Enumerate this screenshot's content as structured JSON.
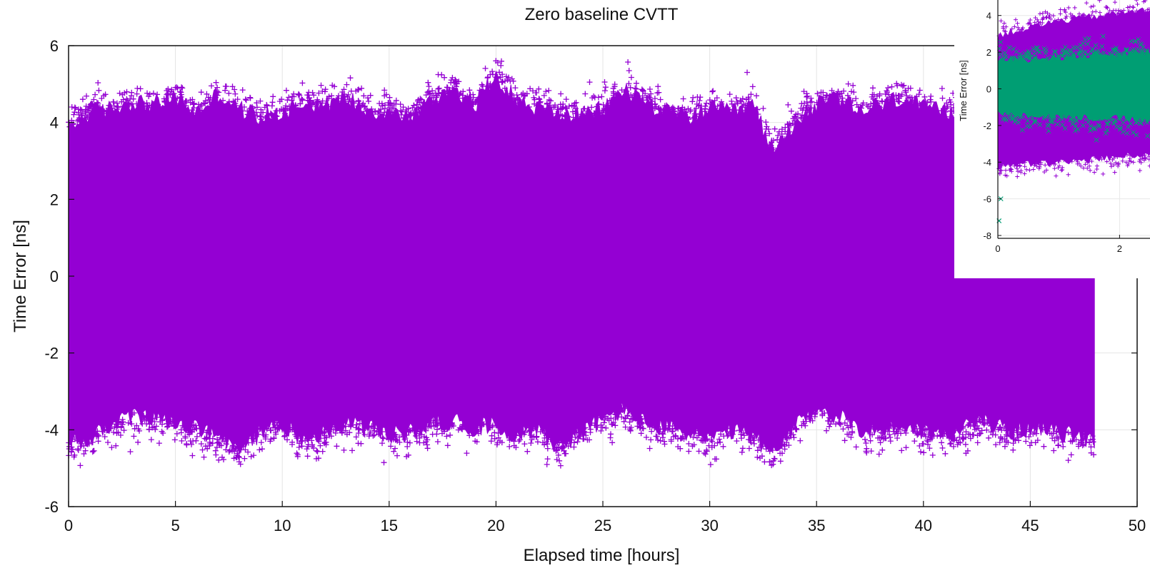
{
  "chart_data": [
    {
      "type": "scatter",
      "title": "Zero baseline CVTT",
      "xlabel": "Elapsed time [hours]",
      "ylabel": "Time Error [ns]",
      "xlim": [
        0,
        50
      ],
      "ylim": [
        -6,
        6
      ],
      "xticks": [
        "0",
        "5",
        "10",
        "15",
        "20",
        "25",
        "30",
        "35",
        "40",
        "45",
        "50"
      ],
      "yticks": [
        "6",
        "4",
        "2",
        "0",
        "-2",
        "-4",
        "-6"
      ],
      "grid": true,
      "marker": "+",
      "series": [
        {
          "color": "#9400d3",
          "x_range": [
            0,
            48
          ],
          "upper_envelope": [
            [
              0,
              4.2
            ],
            [
              1,
              4.6
            ],
            [
              2,
              4.7
            ],
            [
              3,
              4.9
            ],
            [
              4,
              4.8
            ],
            [
              5,
              5.0
            ],
            [
              6,
              4.6
            ],
            [
              7,
              5.1
            ],
            [
              8,
              4.7
            ],
            [
              9,
              4.5
            ],
            [
              10,
              4.6
            ],
            [
              11,
              4.9
            ],
            [
              12,
              4.8
            ],
            [
              13,
              5.0
            ],
            [
              14,
              4.7
            ],
            [
              15,
              4.6
            ],
            [
              16,
              4.5
            ],
            [
              17,
              4.9
            ],
            [
              18,
              5.3
            ],
            [
              19,
              4.8
            ],
            [
              20,
              5.6
            ],
            [
              21,
              4.9
            ],
            [
              22,
              4.7
            ],
            [
              23,
              4.6
            ],
            [
              24,
              4.5
            ],
            [
              25,
              4.7
            ],
            [
              26,
              5.2
            ],
            [
              27,
              4.9
            ],
            [
              28,
              4.6
            ],
            [
              29,
              4.5
            ],
            [
              30,
              4.7
            ],
            [
              31,
              4.6
            ],
            [
              32,
              4.8
            ],
            [
              33,
              3.6
            ],
            [
              34,
              4.4
            ],
            [
              35,
              4.8
            ],
            [
              36,
              5.0
            ],
            [
              37,
              4.6
            ],
            [
              38,
              4.8
            ],
            [
              39,
              5.0
            ],
            [
              40,
              4.7
            ],
            [
              41,
              4.6
            ],
            [
              42,
              4.4
            ],
            [
              43,
              4.8
            ],
            [
              44,
              4.6
            ],
            [
              45,
              4.6
            ],
            [
              46,
              4.7
            ],
            [
              47,
              4.5
            ],
            [
              48,
              4.4
            ]
          ],
          "lower_envelope": [
            [
              0,
              -4.7
            ],
            [
              1,
              -4.6
            ],
            [
              2,
              -4.2
            ],
            [
              3,
              -4.0
            ],
            [
              4,
              -4.1
            ],
            [
              5,
              -4.2
            ],
            [
              6,
              -4.3
            ],
            [
              7,
              -4.6
            ],
            [
              8,
              -4.9
            ],
            [
              9,
              -4.4
            ],
            [
              10,
              -4.2
            ],
            [
              11,
              -4.6
            ],
            [
              12,
              -4.4
            ],
            [
              13,
              -4.2
            ],
            [
              14,
              -4.3
            ],
            [
              15,
              -4.5
            ],
            [
              16,
              -4.4
            ],
            [
              17,
              -4.2
            ],
            [
              18,
              -4.1
            ],
            [
              19,
              -4.3
            ],
            [
              20,
              -4.2
            ],
            [
              21,
              -4.5
            ],
            [
              22,
              -4.3
            ],
            [
              23,
              -4.8
            ],
            [
              24,
              -4.4
            ],
            [
              25,
              -4.1
            ],
            [
              26,
              -3.8
            ],
            [
              27,
              -4.2
            ],
            [
              28,
              -4.3
            ],
            [
              29,
              -4.4
            ],
            [
              30,
              -4.6
            ],
            [
              31,
              -4.4
            ],
            [
              32,
              -4.5
            ],
            [
              33,
              -5.0
            ],
            [
              34,
              -4.3
            ],
            [
              35,
              -3.8
            ],
            [
              36,
              -4.0
            ],
            [
              37,
              -4.3
            ],
            [
              38,
              -4.4
            ],
            [
              39,
              -4.2
            ],
            [
              40,
              -4.4
            ],
            [
              41,
              -4.5
            ],
            [
              42,
              -4.3
            ],
            [
              43,
              -4.1
            ],
            [
              44,
              -4.4
            ],
            [
              45,
              -4.3
            ],
            [
              46,
              -4.4
            ],
            [
              47,
              -4.5
            ],
            [
              48,
              -4.6
            ]
          ]
        }
      ]
    },
    {
      "type": "scatter",
      "ylabel": "Time Error [ns]",
      "xlim": [
        0,
        2.5
      ],
      "ylim": [
        -8,
        5
      ],
      "xticks": [
        "0",
        "2"
      ],
      "yticks": [
        "4",
        "2",
        "0",
        "-2",
        "-4",
        "-6",
        "-8"
      ],
      "grid": true,
      "series": [
        {
          "color": "#9400d3",
          "marker": "+",
          "upper_envelope": [
            [
              0,
              3.2
            ],
            [
              1,
              4.0
            ],
            [
              2,
              4.4
            ],
            [
              2.5,
              4.6
            ]
          ],
          "lower_envelope": [
            [
              0,
              -4.5
            ],
            [
              1,
              -4.3
            ],
            [
              2,
              -4.0
            ],
            [
              2.5,
              -3.8
            ]
          ]
        },
        {
          "color": "#009e73",
          "marker": "x",
          "upper_envelope": [
            [
              0,
              1.8
            ],
            [
              1,
              2.0
            ],
            [
              2,
              2.2
            ],
            [
              2.5,
              2.3
            ]
          ],
          "lower_envelope": [
            [
              0,
              -1.6
            ],
            [
              1,
              -1.8
            ],
            [
              2,
              -1.9
            ],
            [
              2.5,
              -2.0
            ]
          ]
        }
      ]
    }
  ]
}
